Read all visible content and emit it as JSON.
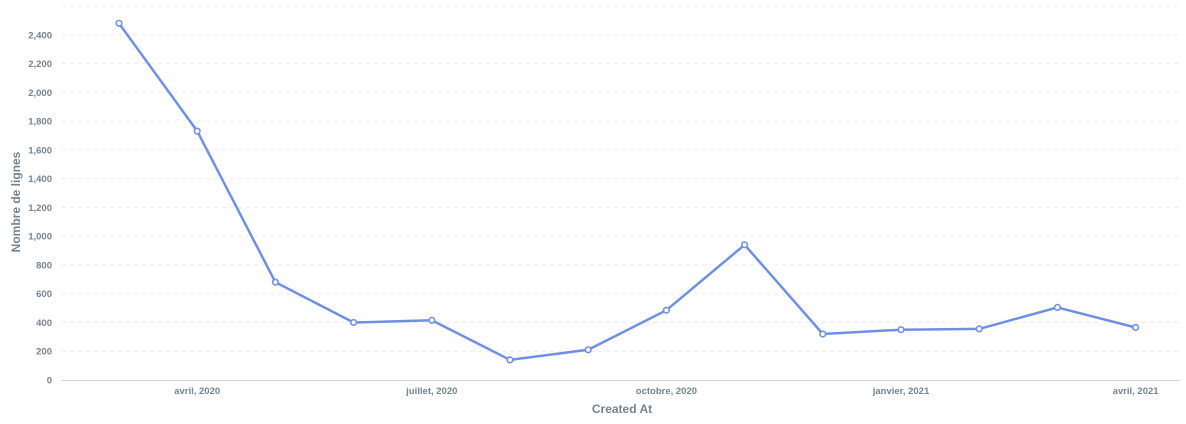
{
  "chart_data": {
    "type": "line",
    "xlabel": "Created At",
    "ylabel": "Nombre de lignes",
    "ylim": [
      0,
      2600
    ],
    "yticks": [
      0,
      200,
      400,
      600,
      800,
      1000,
      1200,
      1400,
      1600,
      1800,
      2000,
      2200,
      2400
    ],
    "ytick_labels": [
      "0",
      "200",
      "400",
      "600",
      "800",
      "1,000",
      "1,200",
      "1,400",
      "1,600",
      "1,800",
      "2,000",
      "2,200",
      "2,400"
    ],
    "x": [
      "2020-03",
      "2020-04",
      "2020-05",
      "2020-06",
      "2020-07",
      "2020-08",
      "2020-09",
      "2020-10",
      "2020-11",
      "2020-12",
      "2021-01",
      "2021-02",
      "2021-03",
      "2021-04"
    ],
    "xticks": [
      {
        "x": "2020-04",
        "label": "avril, 2020"
      },
      {
        "x": "2020-07",
        "label": "juillet, 2020"
      },
      {
        "x": "2020-10",
        "label": "octobre, 2020"
      },
      {
        "x": "2021-01",
        "label": "janvier, 2021"
      },
      {
        "x": "2021-04",
        "label": "avril, 2021"
      }
    ],
    "series": [
      {
        "values": [
          2480,
          1730,
          680,
          400,
          415,
          140,
          210,
          485,
          940,
          320,
          350,
          355,
          505,
          365
        ],
        "color": "#6f8fe2"
      }
    ],
    "grid": true,
    "legend": "none"
  }
}
